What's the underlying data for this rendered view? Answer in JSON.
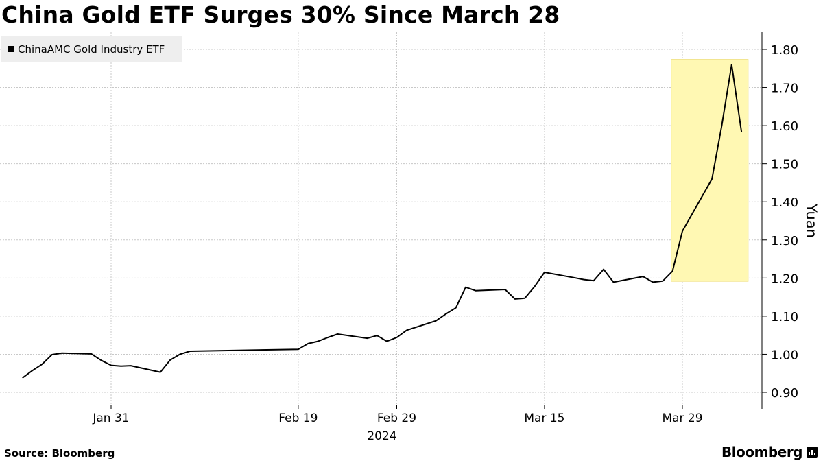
{
  "title": "China Gold ETF Surges 30% Since March 28",
  "source": "Source: Bloomberg",
  "brand": "Bloomberg",
  "chart_data": {
    "type": "line",
    "title": "China Gold ETF Surges 30% Since March 28",
    "ylabel": "Yuan",
    "xlabel": "2024",
    "ylim": [
      0.87,
      1.84
    ],
    "yticks": [
      0.9,
      1.0,
      1.1,
      1.2,
      1.3,
      1.4,
      1.5,
      1.6,
      1.7,
      1.8
    ],
    "ytick_labels": [
      "0.90",
      "1.00",
      "1.10",
      "1.20",
      "1.30",
      "1.40",
      "1.50",
      "1.60",
      "1.70",
      "1.80"
    ],
    "xticks": [
      {
        "date": "2024-01-31",
        "label": "Jan 31"
      },
      {
        "date": "2024-02-19",
        "label": "Feb 19"
      },
      {
        "date": "2024-02-29",
        "label": "Feb 29"
      },
      {
        "date": "2024-03-15",
        "label": "Mar 15"
      },
      {
        "date": "2024-03-29",
        "label": "Mar 29"
      }
    ],
    "x_year_label": "2024",
    "grid": true,
    "legend_position": "top-left",
    "highlight": {
      "from": "2024-03-28",
      "to": "2024-04-03",
      "y_range": [
        1.195,
        1.77
      ],
      "color": "#fff8b3"
    },
    "series": [
      {
        "name": "ChinaAMC Gold Industry ETF",
        "color": "#000000",
        "points": [
          [
            "2024-01-22",
            0.938
          ],
          [
            "2024-01-23",
            0.957
          ],
          [
            "2024-01-24",
            0.974
          ],
          [
            "2024-01-25",
            0.999
          ],
          [
            "2024-01-26",
            1.003
          ],
          [
            "2024-01-29",
            1.001
          ],
          [
            "2024-01-30",
            0.984
          ],
          [
            "2024-01-31",
            0.971
          ],
          [
            "2024-02-01",
            0.969
          ],
          [
            "2024-02-02",
            0.97
          ],
          [
            "2024-02-05",
            0.953
          ],
          [
            "2024-02-06",
            0.985
          ],
          [
            "2024-02-07",
            1.0
          ],
          [
            "2024-02-08",
            1.008
          ],
          [
            "2024-02-19",
            1.013
          ],
          [
            "2024-02-20",
            1.028
          ],
          [
            "2024-02-21",
            1.034
          ],
          [
            "2024-02-22",
            1.044
          ],
          [
            "2024-02-23",
            1.053
          ],
          [
            "2024-02-26",
            1.042
          ],
          [
            "2024-02-27",
            1.049
          ],
          [
            "2024-02-28",
            1.034
          ],
          [
            "2024-02-29",
            1.044
          ],
          [
            "2024-03-01",
            1.063
          ],
          [
            "2024-03-04",
            1.088
          ],
          [
            "2024-03-05",
            1.106
          ],
          [
            "2024-03-06",
            1.122
          ],
          [
            "2024-03-07",
            1.176
          ],
          [
            "2024-03-08",
            1.167
          ],
          [
            "2024-03-11",
            1.17
          ],
          [
            "2024-03-12",
            1.145
          ],
          [
            "2024-03-13",
            1.147
          ],
          [
            "2024-03-14",
            1.178
          ],
          [
            "2024-03-15",
            1.215
          ],
          [
            "2024-03-18",
            1.201
          ],
          [
            "2024-03-19",
            1.196
          ],
          [
            "2024-03-20",
            1.193
          ],
          [
            "2024-03-21",
            1.223
          ],
          [
            "2024-03-22",
            1.189
          ],
          [
            "2024-03-25",
            1.204
          ],
          [
            "2024-03-26",
            1.189
          ],
          [
            "2024-03-27",
            1.192
          ],
          [
            "2024-03-28",
            1.218
          ],
          [
            "2024-03-29",
            1.323
          ],
          [
            "2024-04-01",
            1.46
          ],
          [
            "2024-04-02",
            1.6
          ],
          [
            "2024-04-03",
            1.76
          ],
          [
            "2024-04-04",
            1.583
          ]
        ]
      }
    ]
  }
}
